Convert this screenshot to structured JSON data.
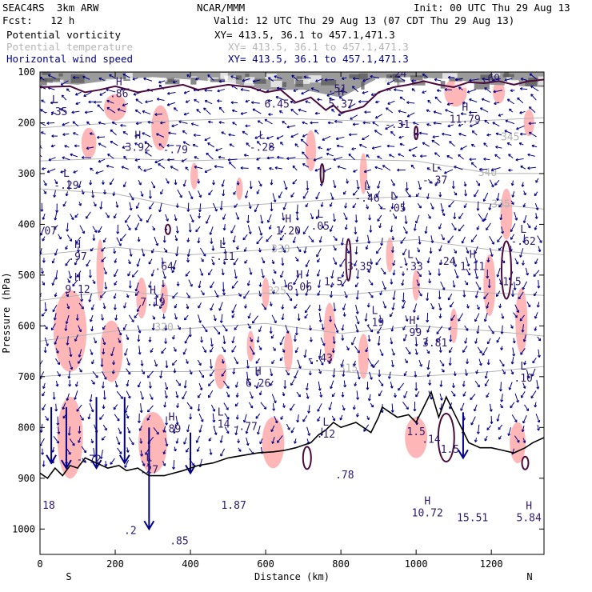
{
  "header": {
    "model": "SEAC4RS  3km ARW",
    "org": "NCAR/MMM",
    "init": "Init: 00 UTC Thu 29 Aug 13",
    "fcst": "Fcst:   12 h",
    "valid": "Valid: 12 UTC Thu 29 Aug 13 (07 CDT Thu 29 Aug 13)",
    "fields": [
      {
        "label": "Potential vorticity",
        "xy": "XY= 413.5, 36.1 to 457.1,471.3",
        "color": "#000000"
      },
      {
        "label": "Potential temperature",
        "xy": "XY= 413.5, 36.1 to 457.1,471.3",
        "color": "#b4b4b4"
      },
      {
        "label": "Horizontal wind speed",
        "xy": "XY= 413.5, 36.1 to 457.1,471.3",
        "color": "#00008b"
      }
    ]
  },
  "chart_data": {
    "type": "cross-section",
    "xlabel": "Distance (km)",
    "ylabel": "Pressure (hPa)",
    "xlim": [
      0,
      1340
    ],
    "ylim": [
      1050,
      100
    ],
    "x_ticks": [
      0,
      200,
      400,
      600,
      800,
      1000,
      1200
    ],
    "y_ticks": [
      100,
      200,
      300,
      400,
      500,
      600,
      700,
      800,
      900,
      1000
    ],
    "end_labels": {
      "left": "S",
      "right": "N"
    },
    "colors": {
      "pv_shade": "#ffb6b6",
      "pv_contour": "#4b0a3c",
      "theta": "#b4b4b4",
      "wind": "#00008b",
      "label": "#2d1a6e",
      "terrain": "#000000"
    },
    "theta_contours": [
      {
        "label": "345",
        "lx": 1250,
        "ly": 235,
        "pts": [
          [
            0,
            210
          ],
          [
            200,
            200
          ],
          [
            400,
            195
          ],
          [
            600,
            190
          ],
          [
            800,
            195
          ],
          [
            1000,
            200
          ],
          [
            1200,
            195
          ],
          [
            1340,
            190
          ]
        ]
      },
      {
        "label": "340",
        "lx": 1190,
        "ly": 305,
        "pts": [
          [
            0,
            275
          ],
          [
            200,
            270
          ],
          [
            400,
            275
          ],
          [
            600,
            270
          ],
          [
            800,
            272
          ],
          [
            1000,
            275
          ],
          [
            1200,
            300
          ],
          [
            1340,
            300
          ]
        ]
      },
      {
        "label": "335",
        "lx": 1225,
        "ly": 367,
        "pts": [
          [
            0,
            330
          ],
          [
            200,
            340
          ],
          [
            400,
            370
          ],
          [
            600,
            360
          ],
          [
            800,
            350
          ],
          [
            1000,
            345
          ],
          [
            1200,
            360
          ],
          [
            1340,
            370
          ]
        ]
      },
      {
        "label": "330",
        "lx": 640,
        "ly": 455,
        "pts": [
          [
            0,
            460
          ],
          [
            200,
            445
          ],
          [
            400,
            460
          ],
          [
            600,
            450
          ],
          [
            800,
            440
          ],
          [
            1000,
            430
          ],
          [
            1200,
            450
          ],
          [
            1340,
            460
          ]
        ]
      },
      {
        "label": "325",
        "lx": 630,
        "ly": 538,
        "pts": [
          [
            0,
            550
          ],
          [
            200,
            530
          ],
          [
            400,
            545
          ],
          [
            600,
            535
          ],
          [
            800,
            540
          ],
          [
            1000,
            525
          ],
          [
            1200,
            535
          ],
          [
            1340,
            540
          ]
        ]
      },
      {
        "label": "320",
        "lx": 330,
        "ly": 610,
        "pts": [
          [
            0,
            630
          ],
          [
            200,
            610
          ],
          [
            400,
            605
          ],
          [
            600,
            595
          ],
          [
            800,
            615
          ],
          [
            1000,
            600
          ],
          [
            1200,
            610
          ],
          [
            1340,
            620
          ]
        ]
      },
      {
        "label": "315",
        "lx": 820,
        "ly": 690,
        "pts": [
          [
            0,
            700
          ],
          [
            200,
            690
          ],
          [
            400,
            690
          ],
          [
            600,
            680
          ],
          [
            800,
            690
          ],
          [
            1000,
            700
          ],
          [
            1200,
            690
          ],
          [
            1340,
            680
          ]
        ]
      }
    ],
    "extrema": [
      {
        "type": "L",
        "value": "-.35",
        "x": 40,
        "p": 185
      },
      {
        "type": "H",
        "value": ".86",
        "x": 210,
        "p": 150
      },
      {
        "type": "H",
        "value": "3.92",
        "x": 260,
        "p": 255
      },
      {
        "type": "",
        "value": "-.79",
        "x": 360,
        "p": 260
      },
      {
        "type": "L",
        "value": "-.29",
        "x": 70,
        "p": 330
      },
      {
        "type": "L",
        "value": "-.28",
        "x": 590,
        "p": 255
      },
      {
        "type": "",
        "value": "6.45",
        "x": 630,
        "p": 170
      },
      {
        "type": "",
        "value": ".51",
        "x": 790,
        "p": 140
      },
      {
        "type": "H",
        "value": "5.37",
        "x": 800,
        "p": 170
      },
      {
        "type": "",
        "value": ".24",
        "x": 950,
        "p": 110
      },
      {
        "type": "L",
        "value": "-.69",
        "x": 1190,
        "p": 120
      },
      {
        "type": "",
        "value": "-.31",
        "x": 950,
        "p": 210
      },
      {
        "type": "H",
        "value": "11.79",
        "x": 1130,
        "p": 200
      },
      {
        "type": "L",
        "value": "-.37",
        "x": 1050,
        "p": 320
      },
      {
        "type": "L",
        "value": "-.46",
        "x": 870,
        "p": 355
      },
      {
        "type": "L",
        "value": "-.05",
        "x": 940,
        "p": 375
      },
      {
        "type": "H",
        "value": "1.20",
        "x": 660,
        "p": 420
      },
      {
        "type": "L",
        "value": ".05",
        "x": 745,
        "p": 410
      },
      {
        "type": "",
        "value": "3.35",
        "x": 850,
        "p": 490
      },
      {
        "type": "",
        "value": ".07",
        "x": 20,
        "p": 420
      },
      {
        "type": "H",
        "value": ".97",
        "x": 100,
        "p": 470
      },
      {
        "type": "H",
        "value": "9.12",
        "x": 100,
        "p": 535
      },
      {
        "type": "L",
        "value": "-.11",
        "x": 485,
        "p": 470
      },
      {
        "type": "",
        "value": ".64",
        "x": 330,
        "p": 490
      },
      {
        "type": "H",
        "value": "7.19",
        "x": 300,
        "p": 560
      },
      {
        "type": "H",
        "value": "6.06",
        "x": 690,
        "p": 530
      },
      {
        "type": "",
        "value": "1.5",
        "x": 780,
        "p": 520
      },
      {
        "type": "L",
        "value": "-.33",
        "x": 985,
        "p": 490
      },
      {
        "type": "",
        "value": ".24",
        "x": 1080,
        "p": 480
      },
      {
        "type": "H",
        "value": "1.11",
        "x": 1150,
        "p": 490
      },
      {
        "type": "",
        "value": "1.5",
        "x": 1255,
        "p": 520
      },
      {
        "type": "L",
        "value": "-.62",
        "x": 1285,
        "p": 440
      },
      {
        "type": "L",
        "value": ".19",
        "x": 890,
        "p": 600
      },
      {
        "type": "H",
        "value": ".99",
        "x": 990,
        "p": 620
      },
      {
        "type": "",
        "value": "3.81",
        "x": 1050,
        "p": 640
      },
      {
        "type": "",
        "value": "-.43",
        "x": 745,
        "p": 670
      },
      {
        "type": "H",
        "value": "6.26",
        "x": 580,
        "p": 720
      },
      {
        "type": "L",
        "value": ".10",
        "x": 1285,
        "p": 710
      },
      {
        "type": "H",
        "value": ".89",
        "x": 350,
        "p": 810
      },
      {
        "type": "L",
        "value": ".14",
        "x": 480,
        "p": 800
      },
      {
        "type": "",
        "value": "-.77",
        "x": 545,
        "p": 805
      },
      {
        "type": "L",
        "value": ".12",
        "x": 760,
        "p": 820
      },
      {
        "type": "",
        "value": "1.5",
        "x": 1000,
        "p": 815
      },
      {
        "type": "",
        "value": ".14",
        "x": 1040,
        "p": 830
      },
      {
        "type": "",
        "value": "1.5",
        "x": 1090,
        "p": 850
      },
      {
        "type": "",
        "value": "-.72",
        "x": 130,
        "p": 870
      },
      {
        "type": "L",
        "value": ".27",
        "x": 290,
        "p": 890
      },
      {
        "type": "",
        "value": ".18",
        "x": 15,
        "p": 960
      },
      {
        "type": "",
        "value": ".2",
        "x": 240,
        "p": 1010
      },
      {
        "type": "",
        "value": ".85",
        "x": 370,
        "p": 1030
      },
      {
        "type": "",
        "value": "1.87",
        "x": 515,
        "p": 960
      },
      {
        "type": "",
        "value": ".78",
        "x": 810,
        "p": 900
      },
      {
        "type": "H",
        "value": "10.72",
        "x": 1030,
        "p": 975
      },
      {
        "type": "",
        "value": "15.51",
        "x": 1150,
        "p": 985
      },
      {
        "type": "H",
        "value": "5.84",
        "x": 1300,
        "p": 985
      }
    ]
  }
}
